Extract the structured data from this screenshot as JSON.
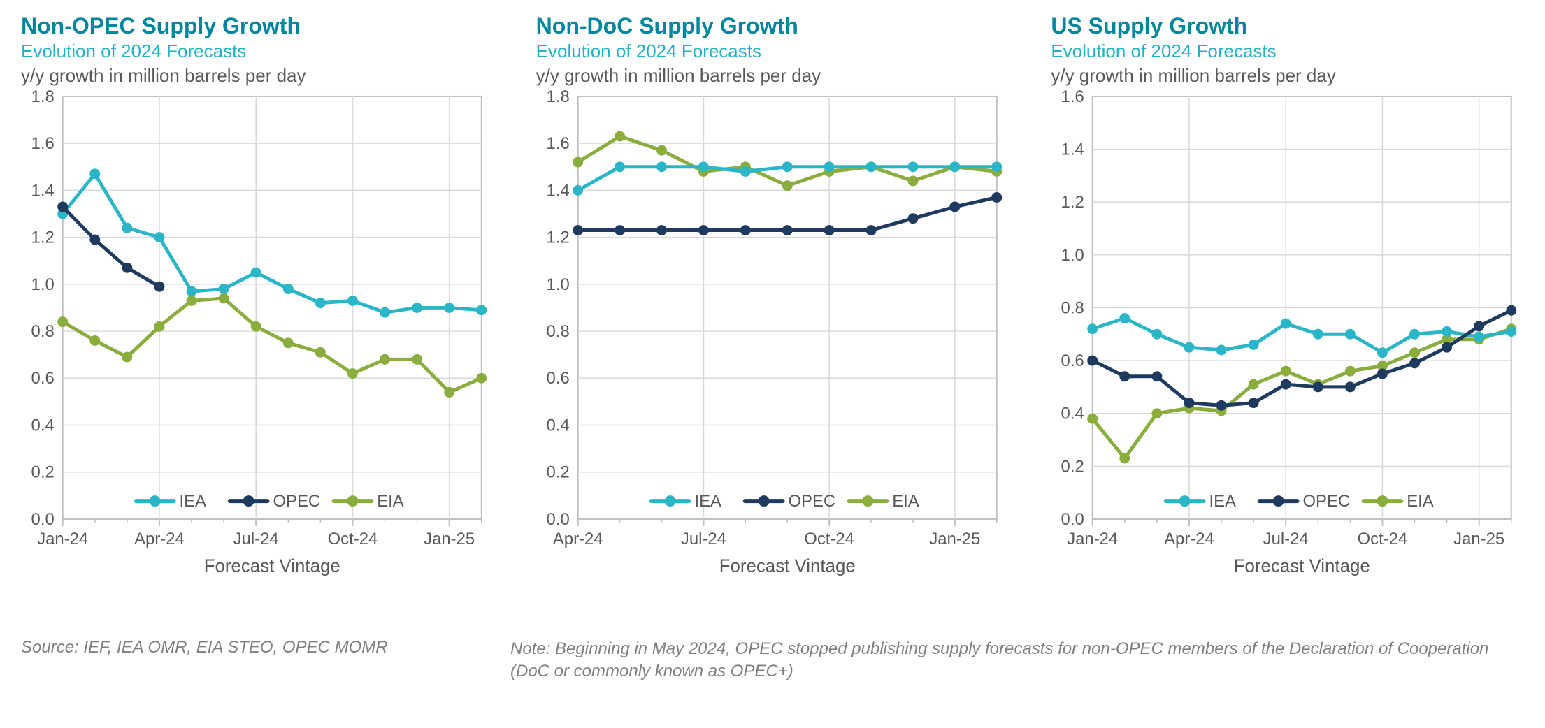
{
  "layout": {
    "background_color": "#ffffff",
    "title_color": "#00879d",
    "subtitle_color": "#22b2c6",
    "text_color": "#595959",
    "grid_color": "#d9d9d9",
    "axis_color": "#bfbfbf",
    "footer_color": "#808080",
    "title_fontsize": 32,
    "subtitle_fontsize": 26,
    "ylabel_fontsize": 26,
    "tick_fontsize": 24,
    "legend_fontsize": 24,
    "footer_fontsize": 24,
    "marker_radius": 7,
    "line_width": 5,
    "legend_line_width": 6,
    "legend_marker_radius": 8
  },
  "series_colors": {
    "IEA": "#2bb6c8",
    "OPEC": "#1f3a5f",
    "EIA": "#8aad3e"
  },
  "legend_labels": [
    "IEA",
    "OPEC",
    "EIA"
  ],
  "footer": {
    "source": "Source: IEF, IEA OMR, EIA STEO, OPEC MOMR",
    "note": "Note: Beginning in May 2024, OPEC stopped publishing supply forecasts for non-OPEC members of the Declaration of Cooperation (DoC or commonly known as OPEC+)"
  },
  "charts": [
    {
      "id": "non-opec",
      "title": "Non-OPEC Supply Growth",
      "subtitle": "Evolution of 2024 Forecasts",
      "ylabel_text": "y/y growth in million barrels per day",
      "xlabel": "Forecast Vintage",
      "type": "line",
      "x_categories": [
        "Jan-24",
        "Feb-24",
        "Mar-24",
        "Apr-24",
        "May-24",
        "Jun-24",
        "Jul-24",
        "Aug-24",
        "Sep-24",
        "Oct-24",
        "Nov-24",
        "Dec-24",
        "Jan-25",
        "Feb-25"
      ],
      "x_tick_indices": [
        0,
        3,
        6,
        9,
        12
      ],
      "x_tick_labels": [
        "Jan-24",
        "Apr-24",
        "Jul-24",
        "Oct-24",
        "Jan-25"
      ],
      "ylim": [
        0.0,
        1.8
      ],
      "ytick_step": 0.2,
      "y_tick_labels": [
        "0.0",
        "0.2",
        "0.4",
        "0.6",
        "0.8",
        "1.0",
        "1.2",
        "1.4",
        "1.6",
        "1.8"
      ],
      "series": [
        {
          "name": "IEA",
          "values": [
            1.3,
            1.47,
            1.24,
            1.2,
            0.97,
            0.98,
            1.05,
            0.98,
            0.92,
            0.93,
            0.88,
            0.9,
            0.9,
            0.89
          ]
        },
        {
          "name": "OPEC",
          "values": [
            1.33,
            1.19,
            1.07,
            0.99,
            null,
            null,
            null,
            null,
            null,
            null,
            null,
            null,
            null,
            null
          ]
        },
        {
          "name": "EIA",
          "values": [
            0.84,
            0.76,
            0.69,
            0.82,
            0.93,
            0.94,
            0.82,
            0.75,
            0.71,
            0.62,
            0.68,
            0.68,
            0.54,
            0.6
          ]
        }
      ]
    },
    {
      "id": "non-doc",
      "title": "Non-DoC Supply Growth",
      "subtitle": "Evolution of 2024 Forecasts",
      "ylabel_text": "y/y growth in million barrels per day",
      "xlabel": "Forecast Vintage",
      "type": "line",
      "x_categories": [
        "Apr-24",
        "May-24",
        "Jun-24",
        "Jul-24",
        "Aug-24",
        "Sep-24",
        "Oct-24",
        "Nov-24",
        "Dec-24",
        "Jan-25",
        "Feb-25"
      ],
      "x_tick_indices": [
        0,
        3,
        6,
        9
      ],
      "x_tick_labels": [
        "Apr-24",
        "Jul-24",
        "Oct-24",
        "Jan-25"
      ],
      "ylim": [
        0.0,
        1.8
      ],
      "ytick_step": 0.2,
      "y_tick_labels": [
        "0.0",
        "0.2",
        "0.4",
        "0.6",
        "0.8",
        "1.0",
        "1.2",
        "1.4",
        "1.6",
        "1.8"
      ],
      "series": [
        {
          "name": "IEA",
          "values": [
            1.4,
            1.5,
            1.5,
            1.5,
            1.48,
            1.5,
            1.5,
            1.5,
            1.5,
            1.5,
            1.5
          ]
        },
        {
          "name": "OPEC",
          "values": [
            1.23,
            1.23,
            1.23,
            1.23,
            1.23,
            1.23,
            1.23,
            1.23,
            1.28,
            1.33,
            1.37
          ]
        },
        {
          "name": "EIA",
          "values": [
            1.52,
            1.63,
            1.57,
            1.48,
            1.5,
            1.42,
            1.48,
            1.5,
            1.44,
            1.5,
            1.48
          ]
        }
      ]
    },
    {
      "id": "us",
      "title": "US Supply Growth",
      "subtitle": "Evolution of 2024 Forecasts",
      "ylabel_text": "y/y growth in million barrels per day",
      "xlabel": "Forecast Vintage",
      "type": "line",
      "x_categories": [
        "Jan-24",
        "Feb-24",
        "Mar-24",
        "Apr-24",
        "May-24",
        "Jun-24",
        "Jul-24",
        "Aug-24",
        "Sep-24",
        "Oct-24",
        "Nov-24",
        "Dec-24",
        "Jan-25",
        "Feb-25"
      ],
      "x_tick_indices": [
        0,
        3,
        6,
        9,
        12
      ],
      "x_tick_labels": [
        "Jan-24",
        "Apr-24",
        "Jul-24",
        "Oct-24",
        "Jan-25"
      ],
      "ylim": [
        0.0,
        1.6
      ],
      "ytick_step": 0.2,
      "y_tick_labels": [
        "0.0",
        "0.2",
        "0.4",
        "0.6",
        "0.8",
        "1.0",
        "1.2",
        "1.4",
        "1.6"
      ],
      "series": [
        {
          "name": "IEA",
          "values": [
            0.72,
            0.76,
            0.7,
            0.65,
            0.64,
            0.66,
            0.74,
            0.7,
            0.7,
            0.63,
            0.7,
            0.71,
            0.69,
            0.71
          ]
        },
        {
          "name": "OPEC",
          "values": [
            0.6,
            0.54,
            0.54,
            0.44,
            0.43,
            0.44,
            0.51,
            0.5,
            0.5,
            0.55,
            0.59,
            0.65,
            0.73,
            0.79
          ]
        },
        {
          "name": "EIA",
          "values": [
            0.38,
            0.23,
            0.4,
            0.42,
            0.41,
            0.51,
            0.56,
            0.51,
            0.56,
            0.58,
            0.63,
            0.68,
            0.68,
            0.72
          ]
        }
      ]
    }
  ]
}
